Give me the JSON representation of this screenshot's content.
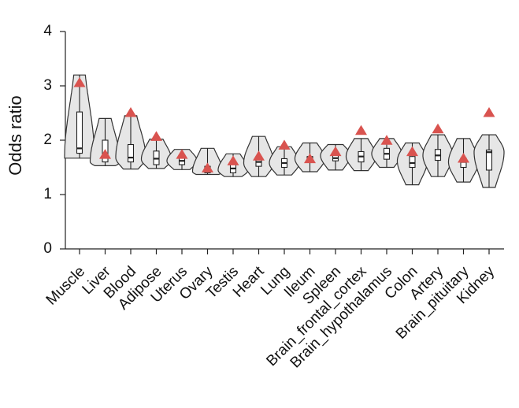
{
  "chart_data": {
    "type": "violin",
    "ylabel": "Odds ratio",
    "ylim": [
      0,
      4
    ],
    "yticks": [
      0,
      1,
      2,
      3,
      4
    ],
    "grid": false,
    "marker_color": "#d9534f",
    "violin_fill": "#e6e6e6",
    "categories": [
      "Muscle",
      "Liver",
      "Blood",
      "Adipose",
      "Uterus",
      "Ovary",
      "Testis",
      "Heart",
      "Lung",
      "Ileum",
      "Spleen",
      "Brain_frontal_cortex",
      "Brain_hypothalamus",
      "Colon",
      "Artery",
      "Brain_pituitary",
      "Kidney"
    ],
    "series": [
      {
        "category": "Muscle",
        "min": 1.67,
        "q1": 1.76,
        "median": 1.85,
        "q3": 2.52,
        "max": 3.2,
        "marker": 3.05,
        "peak": 1.67
      },
      {
        "category": "Liver",
        "min": 1.53,
        "q1": 1.6,
        "median": 1.68,
        "q3": 2.0,
        "max": 2.4,
        "marker": 1.73,
        "peak": 1.6
      },
      {
        "category": "Blood",
        "min": 1.47,
        "q1": 1.6,
        "median": 1.68,
        "q3": 1.92,
        "max": 2.45,
        "marker": 2.5,
        "peak": 1.68
      },
      {
        "category": "Adipose",
        "min": 1.48,
        "q1": 1.55,
        "median": 1.66,
        "q3": 1.8,
        "max": 2.02,
        "marker": 2.06,
        "peak": 1.65
      },
      {
        "category": "Uterus",
        "min": 1.46,
        "q1": 1.55,
        "median": 1.62,
        "q3": 1.7,
        "max": 1.83,
        "marker": 1.73,
        "peak": 1.62
      },
      {
        "category": "Ovary",
        "min": 1.37,
        "q1": 1.4,
        "median": 1.45,
        "q3": 1.52,
        "max": 1.85,
        "marker": 1.48,
        "peak": 1.42
      },
      {
        "category": "Testis",
        "min": 1.33,
        "q1": 1.4,
        "median": 1.48,
        "q3": 1.56,
        "max": 1.75,
        "marker": 1.61,
        "peak": 1.45
      },
      {
        "category": "Heart",
        "min": 1.33,
        "q1": 1.52,
        "median": 1.6,
        "q3": 1.7,
        "max": 2.07,
        "marker": 1.7,
        "peak": 1.58
      },
      {
        "category": "Lung",
        "min": 1.36,
        "q1": 1.5,
        "median": 1.58,
        "q3": 1.66,
        "max": 1.88,
        "marker": 1.9,
        "peak": 1.58
      },
      {
        "category": "Ileum",
        "min": 1.42,
        "q1": 1.6,
        "median": 1.65,
        "q3": 1.7,
        "max": 1.95,
        "marker": 1.65,
        "peak": 1.66
      },
      {
        "category": "Spleen",
        "min": 1.45,
        "q1": 1.62,
        "median": 1.67,
        "q3": 1.76,
        "max": 1.92,
        "marker": 1.78,
        "peak": 1.72
      },
      {
        "category": "Brain_frontal_cortex",
        "min": 1.44,
        "q1": 1.6,
        "median": 1.7,
        "q3": 1.79,
        "max": 2.03,
        "marker": 2.17,
        "peak": 1.7
      },
      {
        "category": "Brain_hypothalamus",
        "min": 1.5,
        "q1": 1.65,
        "median": 1.75,
        "q3": 1.85,
        "max": 2.03,
        "marker": 1.99,
        "peak": 1.75
      },
      {
        "category": "Colon",
        "min": 1.18,
        "q1": 1.5,
        "median": 1.58,
        "q3": 1.7,
        "max": 1.95,
        "marker": 1.78,
        "peak": 1.62
      },
      {
        "category": "Artery",
        "min": 1.33,
        "q1": 1.63,
        "median": 1.72,
        "q3": 1.83,
        "max": 2.1,
        "marker": 2.2,
        "peak": 1.72
      },
      {
        "category": "Brain_pituitary",
        "min": 1.23,
        "q1": 1.5,
        "median": 1.6,
        "q3": 1.67,
        "max": 2.03,
        "marker": 1.66,
        "peak": 1.6
      },
      {
        "category": "Kidney",
        "min": 1.13,
        "q1": 1.45,
        "median": 1.78,
        "q3": 1.82,
        "max": 2.1,
        "marker": 2.5,
        "peak": 1.78
      }
    ]
  }
}
